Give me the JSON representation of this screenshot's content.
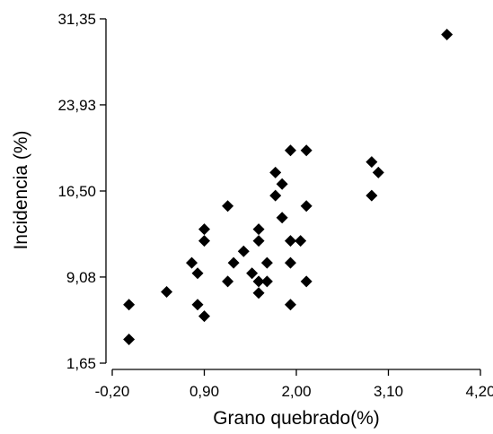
{
  "chart_data": {
    "type": "scatter",
    "xlabel": "Grano quebrado(%)",
    "ylabel": "Incidencia  (%)",
    "xlim": [
      -0.2,
      4.2
    ],
    "ylim": [
      1.65,
      31.35
    ],
    "x_ticks": [
      -0.2,
      0.9,
      2.0,
      3.1,
      4.2
    ],
    "x_tick_labels": [
      "-0,20",
      "0,90",
      "2,00",
      "3,10",
      "4,20"
    ],
    "y_ticks": [
      1.65,
      9.08,
      16.5,
      23.93,
      31.35
    ],
    "y_tick_labels": [
      "1,65",
      "9,08",
      "16,50",
      "23,93",
      "31,35"
    ],
    "grid": false,
    "legend": "none",
    "marker_color": "#000000",
    "marker_shape": "diamond",
    "points": [
      {
        "x": 0.0,
        "y": 3.7
      },
      {
        "x": 0.0,
        "y": 6.7
      },
      {
        "x": 0.45,
        "y": 7.8
      },
      {
        "x": 0.75,
        "y": 10.3
      },
      {
        "x": 0.82,
        "y": 9.4
      },
      {
        "x": 0.82,
        "y": 6.7
      },
      {
        "x": 0.9,
        "y": 5.7
      },
      {
        "x": 0.9,
        "y": 12.2
      },
      {
        "x": 0.9,
        "y": 13.2
      },
      {
        "x": 1.18,
        "y": 8.7
      },
      {
        "x": 1.18,
        "y": 15.2
      },
      {
        "x": 1.25,
        "y": 10.3
      },
      {
        "x": 1.37,
        "y": 11.3
      },
      {
        "x": 1.47,
        "y": 9.4
      },
      {
        "x": 1.55,
        "y": 13.2
      },
      {
        "x": 1.55,
        "y": 12.2
      },
      {
        "x": 1.55,
        "y": 8.7
      },
      {
        "x": 1.55,
        "y": 7.7
      },
      {
        "x": 1.65,
        "y": 8.7
      },
      {
        "x": 1.65,
        "y": 10.3
      },
      {
        "x": 1.75,
        "y": 18.1
      },
      {
        "x": 1.75,
        "y": 16.1
      },
      {
        "x": 1.83,
        "y": 17.1
      },
      {
        "x": 1.83,
        "y": 14.2
      },
      {
        "x": 1.93,
        "y": 20.0
      },
      {
        "x": 1.93,
        "y": 12.2
      },
      {
        "x": 1.93,
        "y": 10.3
      },
      {
        "x": 1.93,
        "y": 6.7
      },
      {
        "x": 2.05,
        "y": 12.2
      },
      {
        "x": 2.12,
        "y": 20.0
      },
      {
        "x": 2.12,
        "y": 15.2
      },
      {
        "x": 2.12,
        "y": 8.7
      },
      {
        "x": 2.9,
        "y": 19.0
      },
      {
        "x": 2.9,
        "y": 16.1
      },
      {
        "x": 2.98,
        "y": 18.1
      },
      {
        "x": 3.8,
        "y": 30.0
      }
    ]
  }
}
